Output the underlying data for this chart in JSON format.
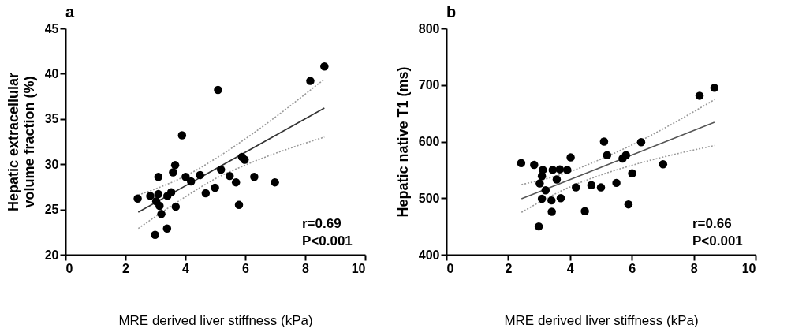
{
  "chart_data": [
    {
      "type": "scatter",
      "title": "a",
      "xlabel": "MRE derived liver stiffness (kPa)",
      "ylabel": "Hepatic extracellular volume fraction (%)",
      "xlim": [
        0,
        10
      ],
      "xticks": [
        0,
        2,
        4,
        6,
        8,
        10
      ],
      "ylim": [
        20,
        45
      ],
      "yticks": [
        20,
        25,
        30,
        35,
        40,
        45
      ],
      "marker": "circle",
      "annotations": [
        "r=0.69",
        "P<0.001"
      ],
      "series": [
        {
          "type": "line",
          "color": "#999999",
          "line_style": "dotted",
          "marker": "none",
          "x": [
            2.43,
            4,
            5,
            6,
            8.64
          ],
          "values": [
            26.6,
            28.7,
            30.6,
            32.8,
            39.4
          ]
        },
        {
          "type": "line",
          "color": "#999999",
          "line_style": "dotted",
          "marker": "none",
          "x": [
            2.43,
            4,
            5,
            6,
            8.64
          ],
          "values": [
            22.9,
            26.4,
            28.4,
            29.9,
            33.0
          ]
        },
        {
          "type": "line",
          "color": "#333333",
          "line_style": "solid",
          "marker": "none",
          "x": [
            2.43,
            8.64
          ],
          "values": [
            24.7,
            36.2
          ]
        },
        {
          "color": "#000000",
          "x": [
            2.41,
            2.83,
            3.1,
            3.03,
            3.14,
            3.2,
            2.99,
            3.39,
            3.1,
            3.4,
            3.53,
            3.68,
            3.59,
            3.66,
            3.89,
            4.01,
            4.19,
            4.49,
            4.68,
            4.99,
            5.09,
            5.19,
            5.48,
            5.69,
            5.79,
            5.89,
            5.98,
            6.3,
            6.99,
            8.17,
            8.64
          ],
          "values": [
            26.2,
            26.5,
            26.7,
            25.9,
            25.4,
            24.5,
            22.2,
            22.9,
            28.6,
            26.5,
            26.9,
            25.3,
            29.1,
            29.9,
            33.2,
            28.6,
            28.1,
            28.8,
            26.8,
            27.4,
            38.2,
            29.4,
            28.7,
            28.0,
            25.5,
            30.8,
            30.5,
            28.6,
            28.0,
            39.2,
            40.8
          ]
        }
      ]
    },
    {
      "type": "scatter",
      "title": "b",
      "xlabel": "MRE derived liver stiffness (kPa)",
      "ylabel": "Hepatic native T1 (ms)",
      "xlim": [
        0,
        10
      ],
      "xticks": [
        0,
        2,
        4,
        6,
        8,
        10
      ],
      "ylim": [
        400,
        800
      ],
      "yticks": [
        400,
        500,
        600,
        700,
        800
      ],
      "marker": "circle",
      "annotations": [
        "r=0.66",
        "P<0.001"
      ],
      "series": [
        {
          "type": "line",
          "color": "#999999",
          "line_style": "dotted",
          "marker": "none",
          "x": [
            2.43,
            4,
            5,
            6,
            8.67
          ],
          "values": [
            524,
            547,
            569,
            594,
            674
          ]
        },
        {
          "type": "line",
          "color": "#999999",
          "line_style": "dotted",
          "marker": "none",
          "x": [
            2.43,
            4,
            5,
            6,
            8.67
          ],
          "values": [
            475,
            520,
            541,
            558,
            593
          ]
        },
        {
          "type": "line",
          "color": "#555555",
          "line_style": "solid",
          "marker": "none",
          "x": [
            2.43,
            8.67
          ],
          "values": [
            499,
            634
          ]
        },
        {
          "color": "#000000",
          "x": [
            2.42,
            2.84,
            3.12,
            3.09,
            3.02,
            3.21,
            3.09,
            2.99,
            3.4,
            3.41,
            3.44,
            3.67,
            3.57,
            3.91,
            3.7,
            4.02,
            4.19,
            4.48,
            4.69,
            5.0,
            5.1,
            5.2,
            5.5,
            5.7,
            5.81,
            5.89,
            6.01,
            6.3,
            7.01,
            8.19,
            8.67
          ],
          "values": [
            562,
            559,
            550,
            539,
            526,
            514,
            499,
            450,
            496,
            476,
            550,
            551,
            533,
            550,
            500,
            572,
            519,
            477,
            523,
            519,
            600,
            576,
            527,
            570,
            576,
            489,
            544,
            599,
            560,
            681,
            695
          ]
        }
      ]
    }
  ]
}
